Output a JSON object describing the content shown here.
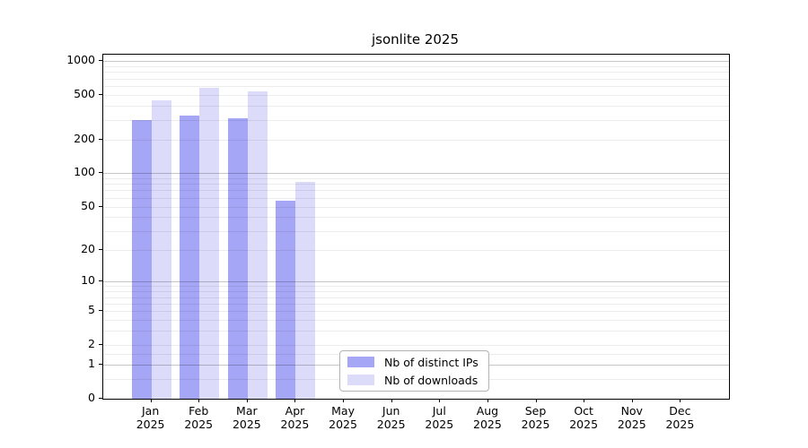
{
  "title": "jsonlite 2025",
  "chart_data": {
    "type": "bar",
    "title": "jsonlite 2025",
    "categories": [
      "Jan",
      "Feb",
      "Mar",
      "Apr",
      "May",
      "Jun",
      "Jul",
      "Aug",
      "Sep",
      "Oct",
      "Nov",
      "Dec"
    ],
    "category_year": "2025",
    "series": [
      {
        "name": "Nb of distinct IPs",
        "color": "#a6a6f6",
        "values": [
          300,
          325,
          310,
          57,
          0,
          0,
          0,
          0,
          0,
          0,
          0,
          0
        ]
      },
      {
        "name": "Nb of downloads",
        "color": "#dcdcfa",
        "values": [
          450,
          575,
          535,
          83,
          0,
          0,
          0,
          0,
          0,
          0,
          0,
          0
        ]
      }
    ],
    "yscale": "log1p",
    "ylim": [
      0,
      1140
    ],
    "yticks": [
      0,
      1,
      2,
      5,
      10,
      20,
      50,
      100,
      200,
      500,
      1000
    ],
    "major_gridlines": [
      1,
      10,
      100,
      1000
    ],
    "minor_gridlines": [
      0.5,
      1.5,
      2,
      3,
      4,
      5,
      6,
      7,
      8,
      9,
      20,
      30,
      40,
      50,
      60,
      70,
      80,
      90,
      200,
      300,
      400,
      500,
      600,
      700,
      800,
      900
    ],
    "grid": "horizontal",
    "legend_position": "inside-bottom-center",
    "xlabel": "",
    "ylabel": "",
    "colors": {
      "axis": "#000000",
      "text": "#000000",
      "legend_border": "#b3b3b3"
    }
  }
}
